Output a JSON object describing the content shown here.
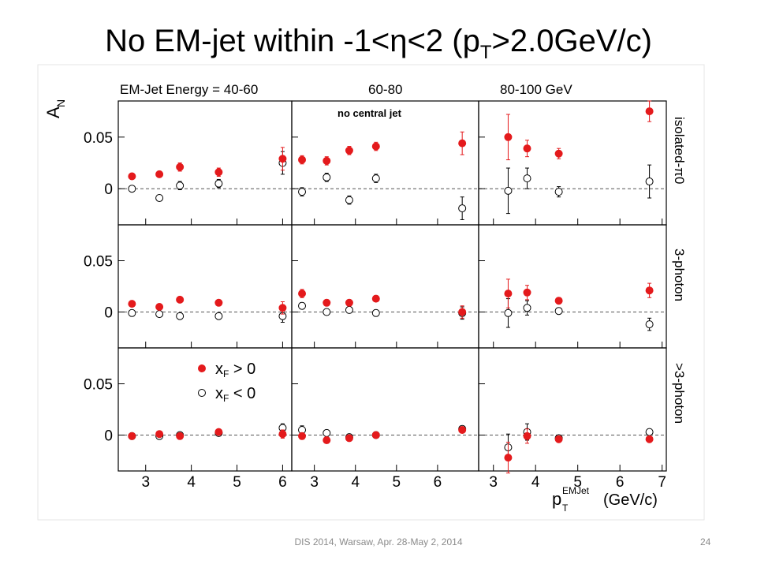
{
  "slide": {
    "title_main": "No EM-jet within -1<η<2 (p",
    "title_sub": "T",
    "title_end": ">2.0GeV/c)",
    "footer": "DIS 2014,  Warsaw,  Apr. 28-May 2, 2014",
    "page": "24"
  },
  "chart_data": {
    "type": "scatter",
    "ylabel": "A_N",
    "xlabel": "p_T^EMJet (GeV/c)",
    "column_titles": [
      "EM-Jet Energy = 40-60",
      "60-80",
      "80-100 GeV"
    ],
    "row_titles": [
      "isolated-π0",
      "3-photon",
      ">3-photon"
    ],
    "annotation": "no central jet",
    "legend": [
      "x_F > 0",
      "x_F < 0"
    ],
    "series_colors": {
      "xF_pos": "#e41a1c",
      "xF_neg": "#000000"
    },
    "ylim": [
      -0.035,
      0.085
    ],
    "y_ticks": [
      0,
      0.05
    ],
    "y_tick_labels": [
      "0",
      "0.05"
    ],
    "x_ranges": [
      [
        2.4,
        6.2
      ],
      [
        2.45,
        7.0
      ],
      [
        2.65,
        7.1
      ]
    ],
    "x_ticks": [
      [
        3,
        4,
        5,
        6
      ],
      [
        3,
        4,
        5,
        6
      ],
      [
        3,
        4,
        5,
        6,
        7
      ]
    ],
    "panels": [
      {
        "row": 0,
        "col": 0,
        "xF_pos": [
          [
            2.7,
            0.012,
            0.002
          ],
          [
            3.3,
            0.014,
            0.003
          ],
          [
            3.75,
            0.021,
            0.004
          ],
          [
            4.6,
            0.016,
            0.004
          ],
          [
            6.0,
            0.029,
            0.011
          ]
        ],
        "xF_neg": [
          [
            2.7,
            0.0,
            0.002
          ],
          [
            3.3,
            -0.009,
            0.003
          ],
          [
            3.75,
            0.003,
            0.004
          ],
          [
            4.6,
            0.005,
            0.004
          ],
          [
            6.0,
            0.025,
            0.011
          ]
        ]
      },
      {
        "row": 0,
        "col": 1,
        "xF_pos": [
          [
            2.7,
            0.028,
            0.004
          ],
          [
            3.3,
            0.027,
            0.004
          ],
          [
            3.85,
            0.037,
            0.004
          ],
          [
            4.5,
            0.041,
            0.004
          ],
          [
            6.6,
            0.044,
            0.011
          ]
        ],
        "xF_neg": [
          [
            2.7,
            -0.003,
            0.004
          ],
          [
            3.3,
            0.011,
            0.004
          ],
          [
            3.85,
            -0.011,
            0.004
          ],
          [
            4.5,
            0.01,
            0.004
          ],
          [
            6.6,
            -0.019,
            0.011
          ]
        ]
      },
      {
        "row": 0,
        "col": 2,
        "xF_pos": [
          [
            3.35,
            0.05,
            0.022
          ],
          [
            3.8,
            0.039,
            0.008
          ],
          [
            4.55,
            0.034,
            0.005
          ],
          [
            6.7,
            0.075,
            0.01
          ]
        ],
        "xF_neg": [
          [
            3.35,
            -0.002,
            0.022
          ],
          [
            3.8,
            0.01,
            0.01
          ],
          [
            4.55,
            -0.003,
            0.005
          ],
          [
            6.7,
            0.007,
            0.016
          ]
        ]
      },
      {
        "row": 1,
        "col": 0,
        "xF_pos": [
          [
            2.7,
            0.008,
            0.002
          ],
          [
            3.3,
            0.005,
            0.002
          ],
          [
            3.75,
            0.012,
            0.002
          ],
          [
            4.6,
            0.009,
            0.002
          ],
          [
            6.0,
            0.004,
            0.006
          ]
        ],
        "xF_neg": [
          [
            2.7,
            -0.001,
            0.002
          ],
          [
            3.3,
            -0.002,
            0.002
          ],
          [
            3.75,
            -0.004,
            0.002
          ],
          [
            4.6,
            -0.004,
            0.002
          ],
          [
            6.0,
            -0.004,
            0.006
          ]
        ]
      },
      {
        "row": 1,
        "col": 1,
        "xF_pos": [
          [
            2.7,
            0.018,
            0.004
          ],
          [
            3.3,
            0.009,
            0.003
          ],
          [
            3.85,
            0.009,
            0.003
          ],
          [
            4.5,
            0.013,
            0.003
          ],
          [
            6.6,
            0.0,
            0.006
          ]
        ],
        "xF_neg": [
          [
            2.7,
            0.006,
            0.003
          ],
          [
            3.3,
            0.0,
            0.003
          ],
          [
            3.85,
            0.002,
            0.003
          ],
          [
            4.5,
            -0.001,
            0.003
          ],
          [
            6.6,
            -0.001,
            0.006
          ]
        ]
      },
      {
        "row": 1,
        "col": 2,
        "xF_pos": [
          [
            3.35,
            0.018,
            0.014
          ],
          [
            3.8,
            0.019,
            0.007
          ],
          [
            4.55,
            0.011,
            0.003
          ],
          [
            6.7,
            0.021,
            0.007
          ]
        ],
        "xF_neg": [
          [
            3.35,
            -0.001,
            0.014
          ],
          [
            3.8,
            0.004,
            0.007
          ],
          [
            4.55,
            0.001,
            0.003
          ],
          [
            6.7,
            -0.012,
            0.006
          ]
        ]
      },
      {
        "row": 2,
        "col": 0,
        "xF_pos": [
          [
            2.7,
            -0.001,
            0.002
          ],
          [
            3.3,
            0.001,
            0.002
          ],
          [
            3.75,
            -0.001,
            0.002
          ],
          [
            4.6,
            0.003,
            0.002
          ],
          [
            6.0,
            0.001,
            0.004
          ]
        ],
        "xF_neg": [
          [
            2.7,
            -0.001,
            0.002
          ],
          [
            3.3,
            -0.001,
            0.002
          ],
          [
            3.75,
            0.0,
            0.002
          ],
          [
            4.6,
            0.002,
            0.002
          ],
          [
            6.0,
            0.007,
            0.004
          ]
        ]
      },
      {
        "row": 2,
        "col": 1,
        "xF_pos": [
          [
            2.7,
            -0.001,
            0.003
          ],
          [
            3.3,
            -0.005,
            0.003
          ],
          [
            3.85,
            -0.003,
            0.003
          ],
          [
            4.5,
            0.0,
            0.003
          ],
          [
            6.6,
            0.005,
            0.003
          ]
        ],
        "xF_neg": [
          [
            2.7,
            0.005,
            0.004
          ],
          [
            3.3,
            0.002,
            0.003
          ],
          [
            3.85,
            -0.002,
            0.003
          ],
          [
            4.5,
            0.0,
            0.003
          ],
          [
            6.6,
            0.006,
            0.003
          ]
        ]
      },
      {
        "row": 2,
        "col": 2,
        "xF_pos": [
          [
            3.35,
            -0.022,
            0.015
          ],
          [
            3.8,
            -0.001,
            0.007
          ],
          [
            4.55,
            -0.004,
            0.003
          ],
          [
            6.7,
            -0.004,
            0.003
          ]
        ],
        "xF_neg": [
          [
            3.35,
            -0.012,
            0.013
          ],
          [
            3.8,
            0.003,
            0.008
          ],
          [
            4.55,
            -0.003,
            0.003
          ],
          [
            6.7,
            0.003,
            0.003
          ]
        ]
      }
    ]
  }
}
